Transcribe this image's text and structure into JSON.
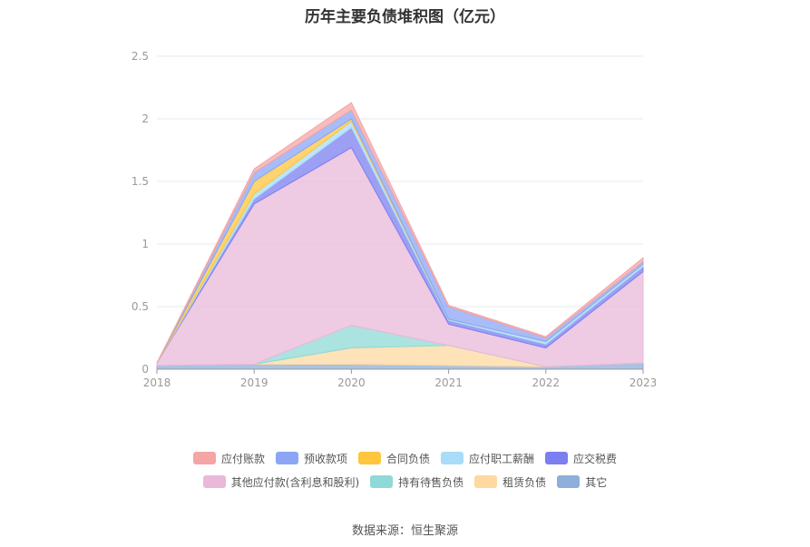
{
  "chart_data": {
    "type": "area",
    "stacked": true,
    "title": "历年主要负债堆积图（亿元）",
    "x": [
      "2018",
      "2019",
      "2020",
      "2021",
      "2022",
      "2023"
    ],
    "ylim": [
      0,
      2.5
    ],
    "yticks": [
      "0",
      "0.5",
      "1",
      "1.5",
      "2",
      "2.5"
    ],
    "grid": true,
    "legend_position": "bottom",
    "series": [
      {
        "name": "其它",
        "color": "#8eaedb",
        "values": [
          0.03,
          0.04,
          0.04,
          0.03,
          0.02,
          0.05
        ]
      },
      {
        "name": "租赁负债",
        "color": "#ffd9a0",
        "values": [
          0.0,
          0.0,
          0.13,
          0.16,
          0.0,
          0.0
        ]
      },
      {
        "name": "持有待售负债",
        "color": "#8fd9d6",
        "values": [
          0.0,
          0.0,
          0.18,
          0.0,
          0.0,
          0.0
        ]
      },
      {
        "name": "其他应付款(含利息和股利)",
        "color": "#eab8d9",
        "values": [
          0.02,
          1.28,
          1.42,
          0.17,
          0.15,
          0.73
        ]
      },
      {
        "name": "应交税费",
        "color": "#7b7ff0",
        "values": [
          0.0,
          0.04,
          0.16,
          0.03,
          0.03,
          0.04
        ]
      },
      {
        "name": "应付职工薪酬",
        "color": "#a8dcf8",
        "values": [
          0.0,
          0.04,
          0.05,
          0.01,
          0.02,
          0.02
        ]
      },
      {
        "name": "合同负债",
        "color": "#ffc53d",
        "values": [
          0.0,
          0.1,
          0.02,
          0.0,
          0.0,
          0.0
        ]
      },
      {
        "name": "预收款项",
        "color": "#8aa6f5",
        "values": [
          0.0,
          0.07,
          0.07,
          0.1,
          0.03,
          0.02
        ]
      },
      {
        "name": "应付账款",
        "color": "#f5a5a5",
        "values": [
          0.0,
          0.03,
          0.06,
          0.01,
          0.01,
          0.03
        ]
      }
    ],
    "legend_rows": [
      [
        "应付账款",
        "预收款项",
        "合同负债",
        "应付职工薪酬",
        "应交税费"
      ],
      [
        "其他应付款(含利息和股利)",
        "持有待售负债",
        "租赁负债",
        "其它"
      ]
    ]
  },
  "footer": {
    "source": "数据来源：恒生聚源"
  },
  "colors": {
    "grid": "#e6e9f0",
    "axis": "#999999"
  }
}
